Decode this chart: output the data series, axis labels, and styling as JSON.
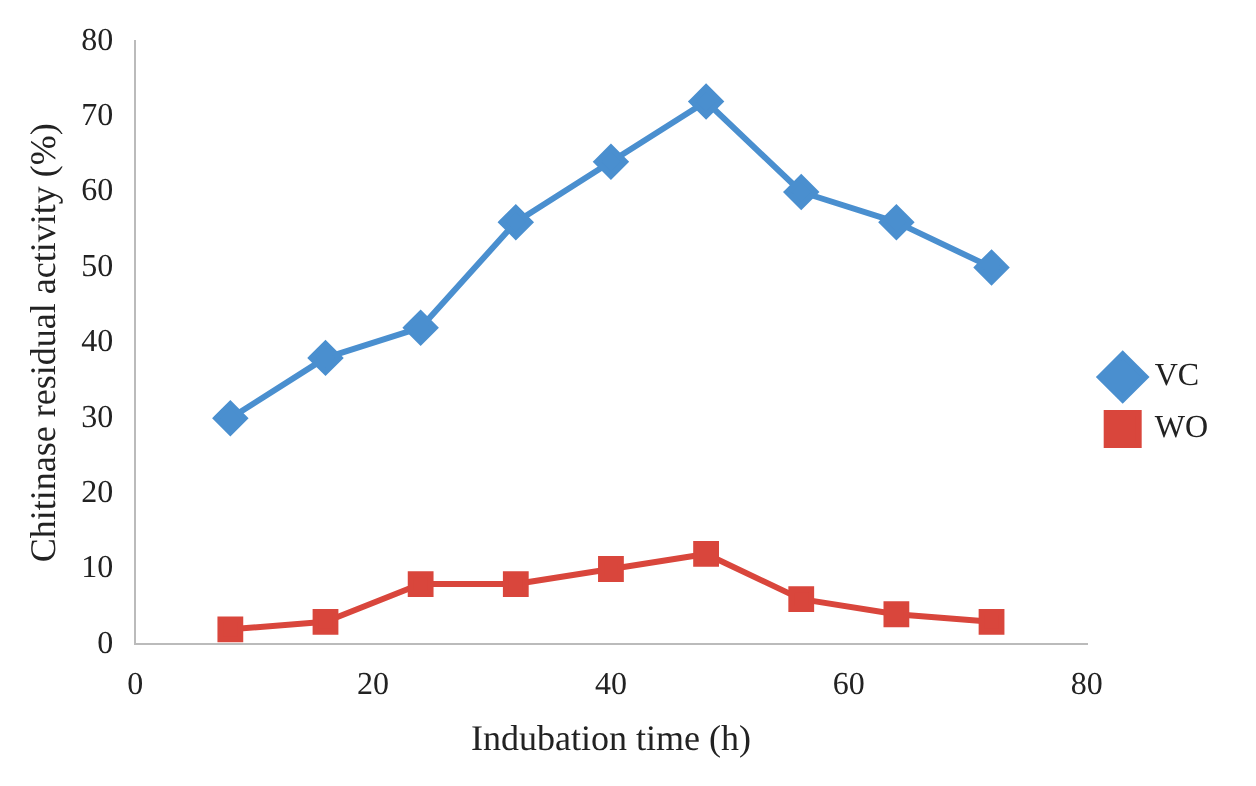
{
  "chart_data": {
    "type": "line",
    "xlabel": "Indubation time (h)",
    "ylabel": "Chitinase residual activity (%)",
    "x": [
      8,
      16,
      24,
      32,
      40,
      48,
      56,
      64,
      72
    ],
    "series": [
      {
        "name": "VC",
        "color": "#4a8fcf",
        "marker": "diamond",
        "values": [
          30,
          38,
          42,
          56,
          64,
          72,
          60,
          56,
          50
        ]
      },
      {
        "name": "WO",
        "color": "#d9463c",
        "marker": "square",
        "values": [
          2,
          3,
          8,
          8,
          10,
          12,
          6,
          4,
          3
        ]
      }
    ],
    "xlim": [
      0,
      80
    ],
    "xticks": [
      0,
      20,
      40,
      60,
      80
    ],
    "ylim": [
      0,
      80
    ],
    "yticks": [
      0,
      10,
      20,
      30,
      40,
      50,
      60,
      70,
      80
    ],
    "grid": false,
    "legend": "right",
    "line_style": "solid"
  }
}
